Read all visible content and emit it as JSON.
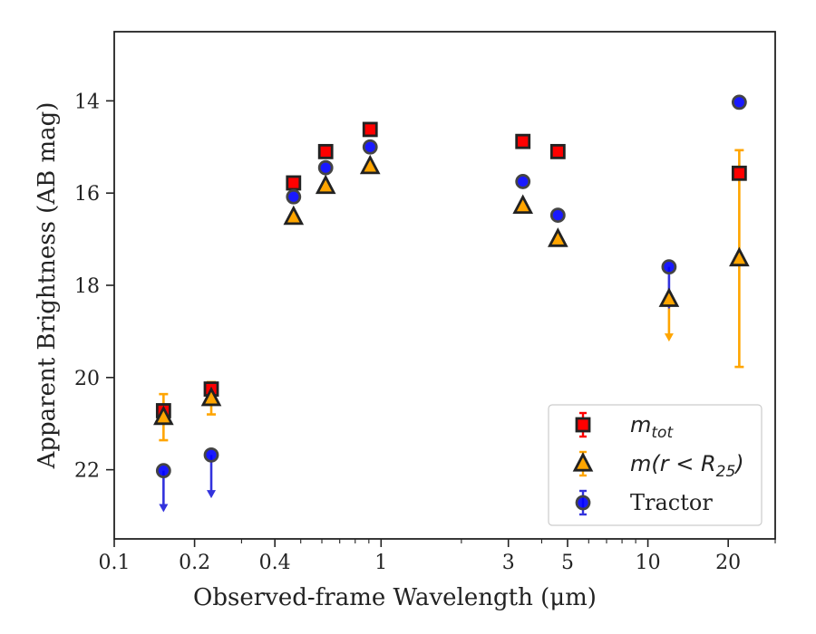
{
  "chart_data": {
    "type": "scatter",
    "title": "",
    "xlabel": "Observed-frame Wavelength (μm)",
    "ylabel": "Apparent Brightness (AB mag)",
    "xscale": "log",
    "xlim": [
      0.1,
      30
    ],
    "ylim": [
      23.5,
      12.5
    ],
    "y_inverted": true,
    "xticks": [
      {
        "value": 0.1,
        "label": "0.1"
      },
      {
        "value": 0.2,
        "label": "0.2"
      },
      {
        "value": 0.4,
        "label": "0.4"
      },
      {
        "value": 1,
        "label": "1"
      },
      {
        "value": 3,
        "label": "3"
      },
      {
        "value": 5,
        "label": "5"
      },
      {
        "value": 10,
        "label": "10"
      },
      {
        "value": 20,
        "label": "20"
      }
    ],
    "yticks": [
      {
        "value": 14,
        "label": "14"
      },
      {
        "value": 16,
        "label": "16"
      },
      {
        "value": 18,
        "label": "18"
      },
      {
        "value": 20,
        "label": "20"
      },
      {
        "value": 22,
        "label": "22"
      }
    ],
    "legend_position": "lower-right",
    "series": [
      {
        "name": "m_tot",
        "legend_main": "m",
        "legend_sub": "tot",
        "legend_tail": "",
        "marker": "square",
        "color": "#ff0000",
        "edge": "#222222",
        "errcolor": "#ff0000",
        "points": [
          {
            "x": 0.153,
            "y": 20.72,
            "err": 0
          },
          {
            "x": 0.231,
            "y": 20.25,
            "err": 0
          },
          {
            "x": 0.47,
            "y": 15.78,
            "err": 0
          },
          {
            "x": 0.62,
            "y": 15.1,
            "err": 0
          },
          {
            "x": 0.91,
            "y": 14.62,
            "err": 0
          },
          {
            "x": 3.4,
            "y": 14.88,
            "err": 0
          },
          {
            "x": 4.6,
            "y": 15.1,
            "err": 0
          },
          {
            "x": 22.0,
            "y": 15.57,
            "err": 0
          }
        ]
      },
      {
        "name": "m(r < R25)",
        "legend_main": "m(r < R",
        "legend_sub": "25",
        "legend_tail": ")",
        "marker": "triangle",
        "color": "#ffa500",
        "edge": "#222222",
        "errcolor": "#ffa500",
        "points": [
          {
            "x": 0.153,
            "y": 20.86,
            "err": 0.5
          },
          {
            "x": 0.231,
            "y": 20.45,
            "err": 0.35
          },
          {
            "x": 0.47,
            "y": 16.52,
            "err": 0
          },
          {
            "x": 0.62,
            "y": 15.85,
            "err": 0
          },
          {
            "x": 0.91,
            "y": 15.42,
            "err": 0
          },
          {
            "x": 3.4,
            "y": 16.28,
            "err": 0
          },
          {
            "x": 4.6,
            "y": 17.0,
            "err": 0
          },
          {
            "x": 12.0,
            "y": 18.3,
            "err": 0,
            "upper_limit": true,
            "arrow_to": 19.2
          },
          {
            "x": 22.0,
            "y": 17.42,
            "err_low": 2.35,
            "err_high": 2.35
          }
        ]
      },
      {
        "name": "Tractor",
        "legend_main": "Tractor",
        "legend_sub": "",
        "legend_tail": "",
        "marker": "circle",
        "color": "#0000ff",
        "edge": "#444444",
        "errcolor": "#3333dd",
        "points": [
          {
            "x": 0.153,
            "y": 22.02,
            "err": 0,
            "upper_limit": true,
            "arrow_to": 22.9
          },
          {
            "x": 0.231,
            "y": 21.68,
            "err": 0,
            "upper_limit": true,
            "arrow_to": 22.6
          },
          {
            "x": 0.47,
            "y": 16.08,
            "err": 0
          },
          {
            "x": 0.62,
            "y": 15.45,
            "err": 0
          },
          {
            "x": 0.91,
            "y": 15.0,
            "err": 0
          },
          {
            "x": 3.4,
            "y": 15.75,
            "err": 0
          },
          {
            "x": 4.6,
            "y": 16.48,
            "err": 0
          },
          {
            "x": 12.0,
            "y": 17.6,
            "err": 0,
            "upper_limit": true,
            "arrow_to": 18.5
          },
          {
            "x": 22.0,
            "y": 14.03,
            "err": 0
          }
        ]
      }
    ]
  }
}
